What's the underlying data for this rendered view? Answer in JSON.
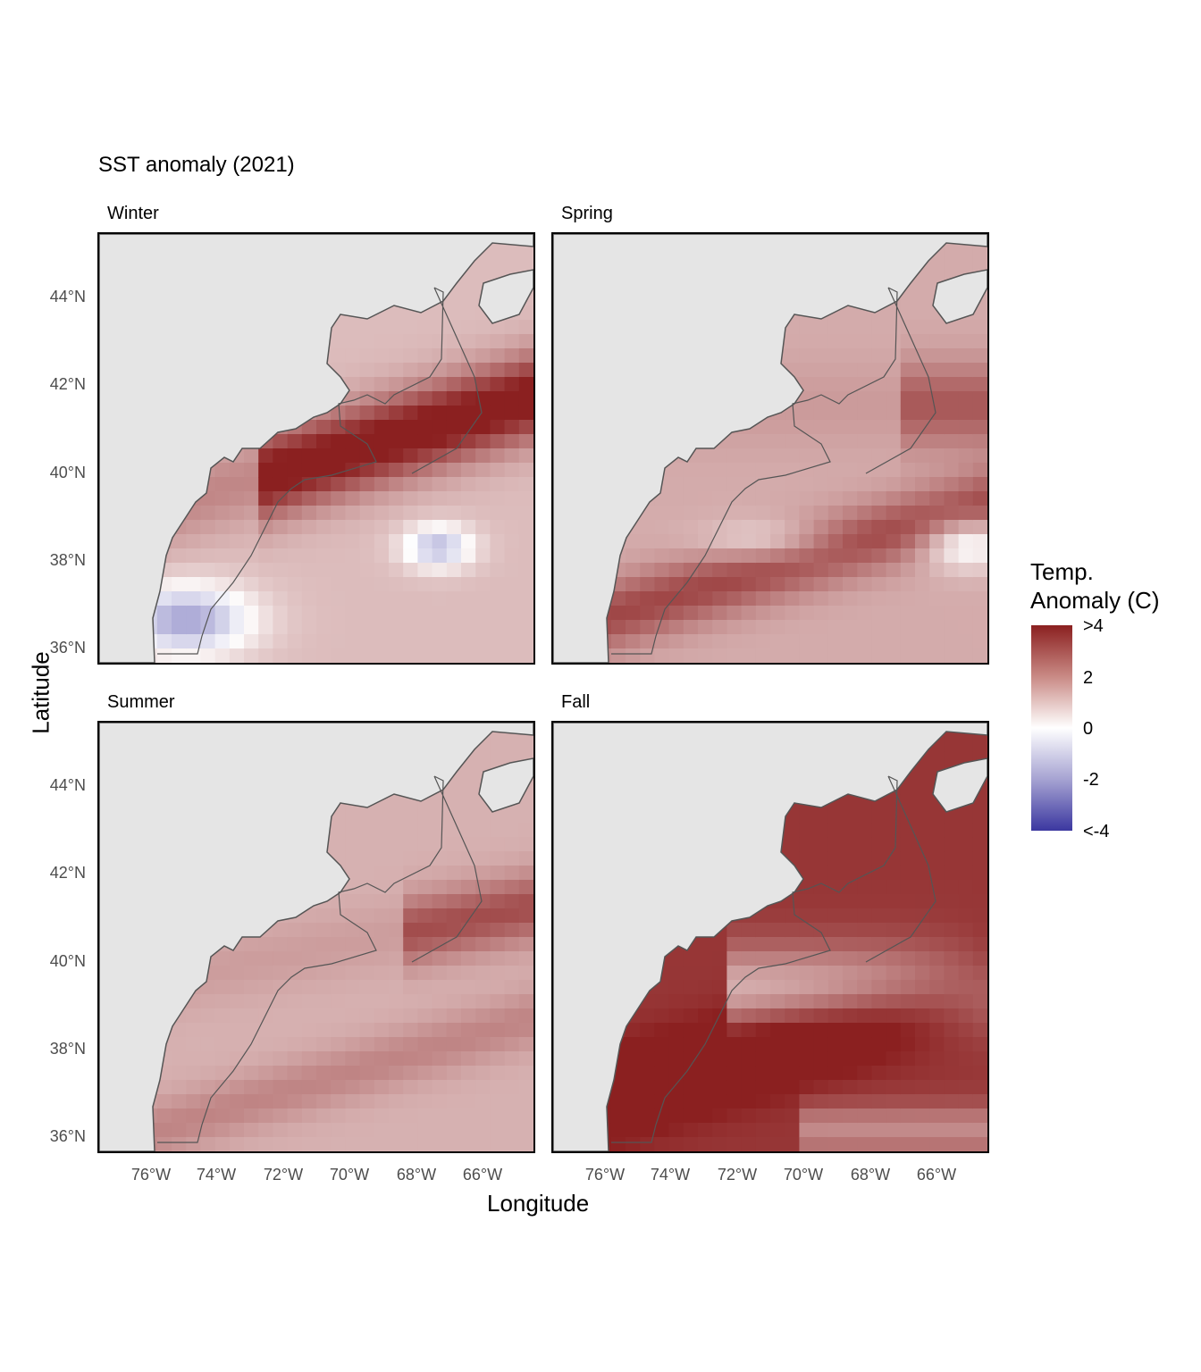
{
  "title": "SST anomaly (2021)",
  "x_axis_label": "Longitude",
  "y_axis_label": "Latitude",
  "legend": {
    "title_line1": "Temp.",
    "title_line2": "Anomaly (C)",
    "ticks": [
      ">4",
      "2",
      "0",
      "-2",
      "<-4"
    ],
    "colors": {
      "high": "#8b2020",
      "mid": "#ffffff",
      "low": "#3b37a0"
    }
  },
  "facets": [
    {
      "label": "Winter"
    },
    {
      "label": "Spring"
    },
    {
      "label": "Summer"
    },
    {
      "label": "Fall"
    }
  ],
  "y_ticks": [
    "44°N",
    "42°N",
    "40°N",
    "38°N",
    "36°N"
  ],
  "x_ticks": [
    "76°W",
    "74°W",
    "72°W",
    "70°W",
    "68°W",
    "66°W"
  ],
  "colors": {
    "land": "#e5e5e5",
    "coast": "#555555"
  },
  "chart_data": {
    "type": "heatmap",
    "variable": "SST anomaly (C)",
    "x_range_degW": [
      77.7,
      64.4
    ],
    "y_range_degN": [
      35.6,
      45.4
    ],
    "color_range": [
      -4,
      4
    ],
    "panels": [
      {
        "season": "Winter",
        "pattern": "warm shelf break band (~+4) near 40-42N east of 70W, cool (~-2 to -4) near 36N 76W and 38N 68W"
      },
      {
        "season": "Spring",
        "pattern": "moderate warm (~+2) Gulf of Maine, warm band 38N 69W, cool patch 38N 65W"
      },
      {
        "season": "Summer",
        "pattern": "broadly warm (~+1 to +3), strongest east of 67W near 41-42N"
      },
      {
        "season": "Fall",
        "pattern": "strongly warm (>+4) over most of shelf and Gulf of Maine"
      }
    ]
  }
}
